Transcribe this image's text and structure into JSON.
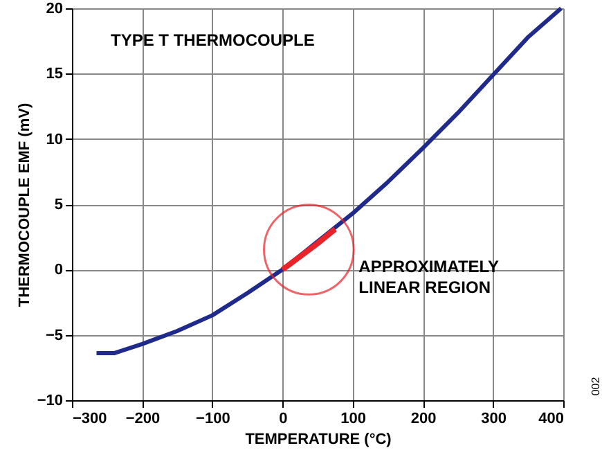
{
  "chart_data": {
    "type": "line",
    "title": "TYPE T THERMOCOUPLE",
    "xlabel": "TEMPERATURE (°C)",
    "ylabel": "THERMOCOUPLE EMF (mV)",
    "series": [
      {
        "color": "#1f2a8a",
        "x": [
          -265,
          -240,
          -200,
          -150,
          -100,
          -50,
          0,
          100,
          150,
          200,
          250,
          300,
          350,
          397
        ],
        "values": [
          -6.4,
          -6.4,
          -5.7,
          -4.7,
          -3.5,
          -1.8,
          0,
          4.3,
          6.7,
          9.3,
          12.0,
          14.9,
          17.8,
          20.0
        ]
      },
      {
        "color": "#e8242a",
        "x": [
          0,
          25,
          50,
          75
        ],
        "values": [
          0,
          1.0,
          2.0,
          3.1
        ]
      }
    ],
    "annotations": [
      "APPROXIMATELY\nLINEAR REGION",
      "002"
    ],
    "xlim": [
      -300,
      400
    ],
    "xticks": [
      -300,
      -200,
      -100,
      0,
      100,
      200,
      300,
      400
    ],
    "ylim": [
      -10,
      20
    ],
    "yticks": [
      -10,
      -5,
      0,
      5,
      10,
      15,
      20
    ],
    "grid": true,
    "line_style": "solid",
    "marker": "none"
  }
}
